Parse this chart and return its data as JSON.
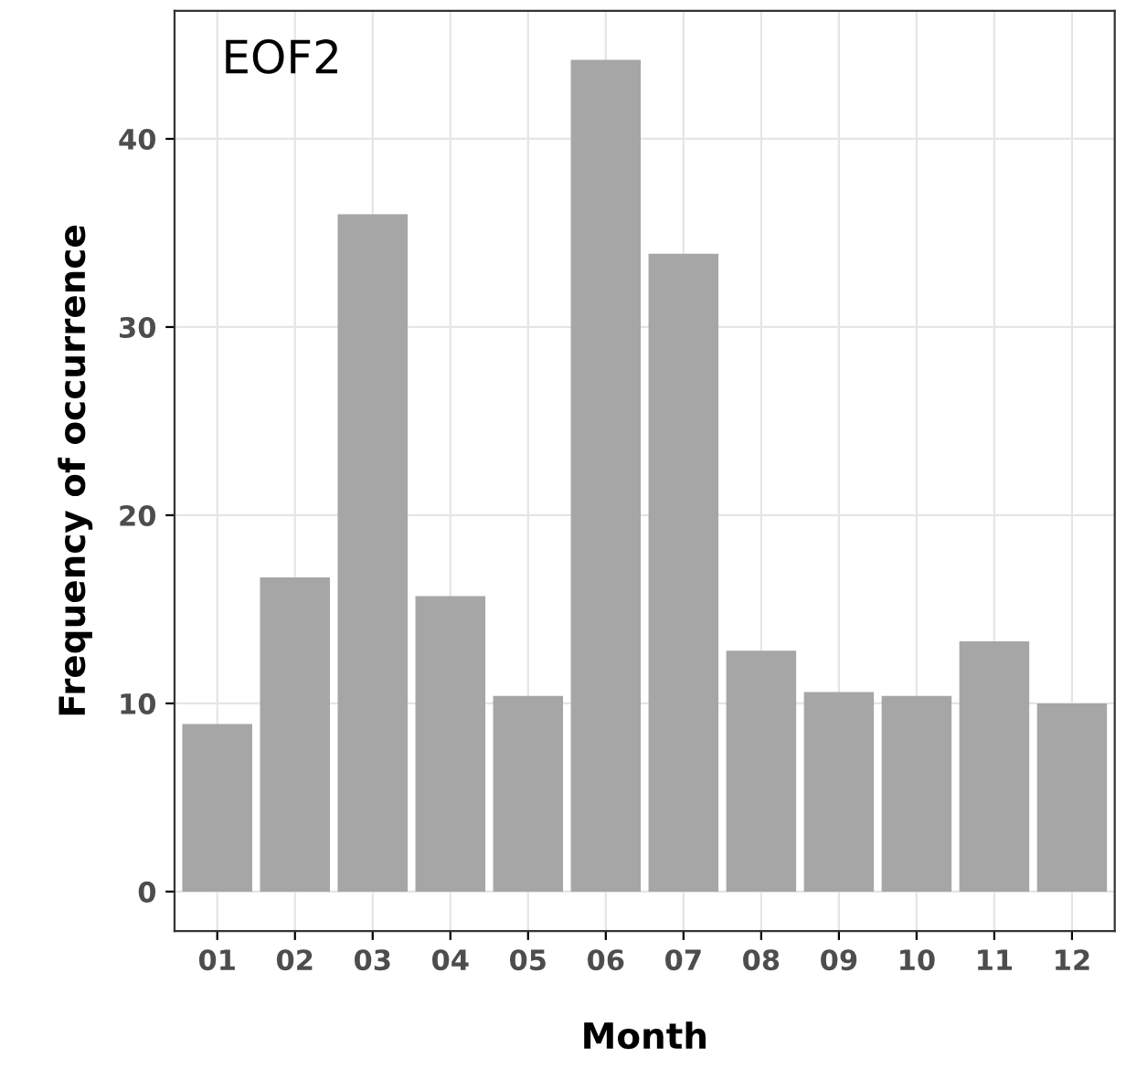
{
  "chart_data": {
    "type": "bar",
    "xlabel": "Month",
    "ylabel": "Frequency of occurrence",
    "annotations": [
      "EOF2"
    ],
    "categories": [
      "01",
      "02",
      "03",
      "04",
      "05",
      "06",
      "07",
      "08",
      "09",
      "10",
      "11",
      "12"
    ],
    "values": [
      8.9,
      16.7,
      36.0,
      15.7,
      10.4,
      44.2,
      33.9,
      12.8,
      10.6,
      10.4,
      13.3,
      10.0
    ],
    "color": "#a6a6a6",
    "ylim": [
      -2.1,
      46.8
    ],
    "yticks": [
      0,
      10,
      20,
      30,
      40
    ],
    "grid": true
  }
}
